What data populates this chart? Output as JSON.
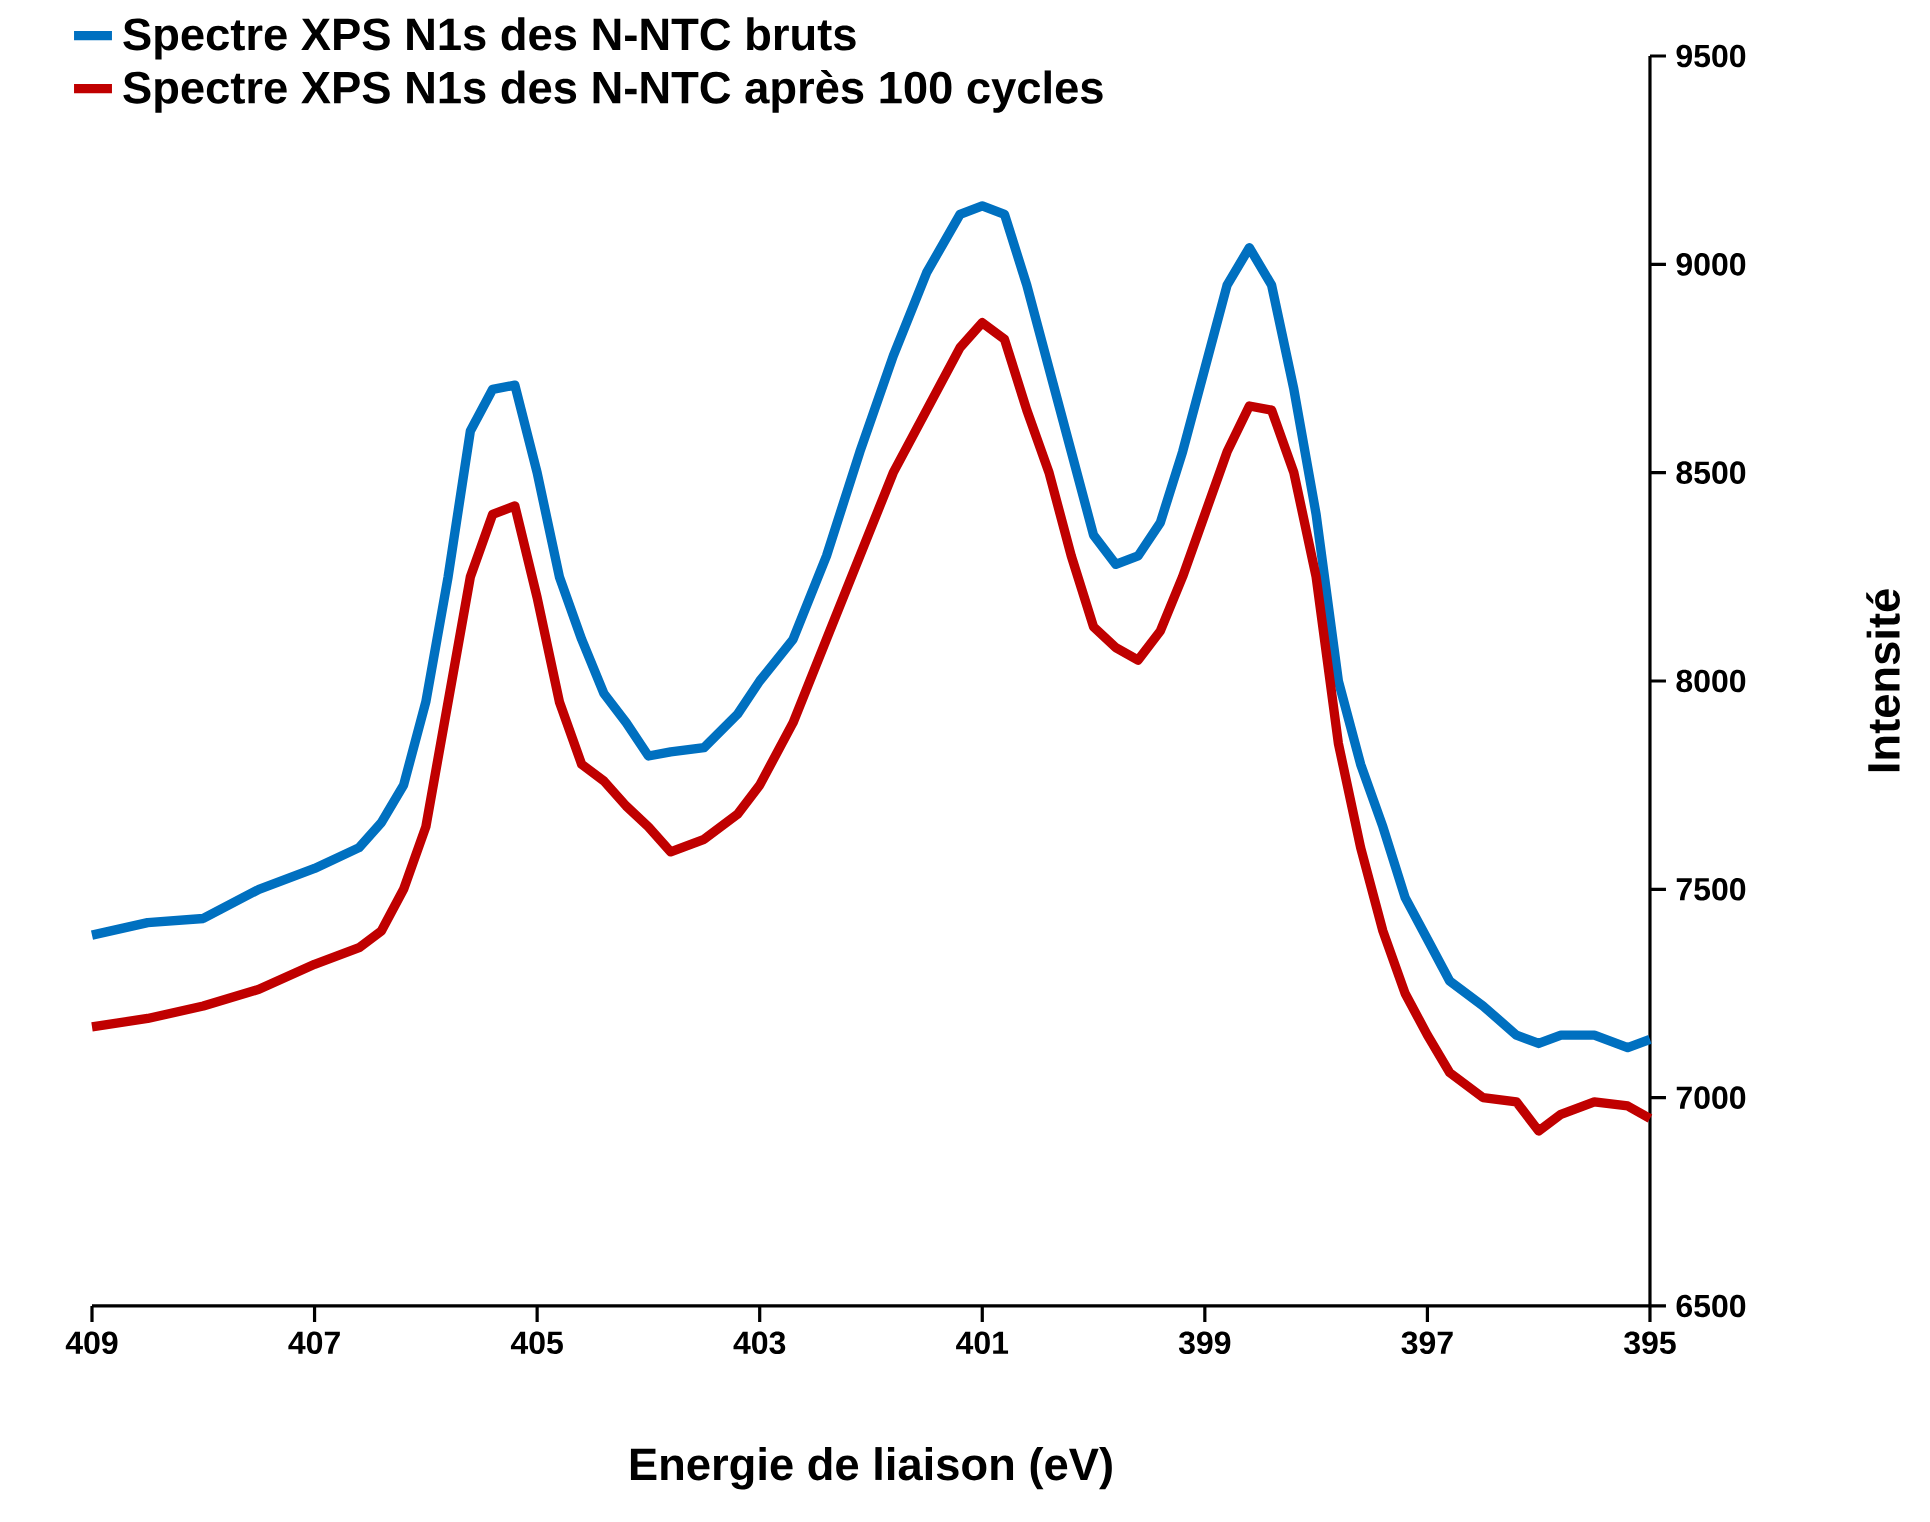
{
  "chart_data": {
    "type": "line",
    "xlabel": "Energie de liaison (eV)",
    "ylabel": "Intensité",
    "xlim": [
      409,
      395
    ],
    "xticks": [
      409,
      407,
      405,
      403,
      401,
      399,
      397,
      395
    ],
    "ylim": [
      6500,
      9500
    ],
    "yticks": [
      6500,
      7000,
      7500,
      8000,
      8500,
      9000,
      9500
    ],
    "grid": false,
    "legend": "top left",
    "marker": "none",
    "line_style": "solid",
    "x": [
      409,
      408.5,
      408,
      407.5,
      407,
      406.6,
      406.4,
      406.2,
      406,
      405.8,
      405.6,
      405.4,
      405.2,
      405,
      404.8,
      404.6,
      404.4,
      404.2,
      404,
      403.8,
      403.5,
      403.2,
      403,
      402.7,
      402.4,
      402.1,
      401.8,
      401.5,
      401.2,
      401,
      400.8,
      400.6,
      400.4,
      400.2,
      400,
      399.8,
      399.6,
      399.4,
      399.2,
      399,
      398.8,
      398.6,
      398.4,
      398.2,
      398,
      397.8,
      397.6,
      397.4,
      397.2,
      397,
      396.8,
      396.5,
      396.2,
      396,
      395.8,
      395.5,
      395.2,
      395
    ],
    "series": [
      {
        "name": "Spectre XPS N1s des N-NTC bruts",
        "color": "#0070c0",
        "values": [
          7390,
          7420,
          7430,
          7500,
          7550,
          7600,
          7660,
          7750,
          7950,
          8250,
          8600,
          8700,
          8710,
          8500,
          8250,
          8100,
          7970,
          7900,
          7820,
          7830,
          7840,
          7920,
          8000,
          8100,
          8300,
          8550,
          8780,
          8980,
          9120,
          9140,
          9120,
          8950,
          8750,
          8550,
          8350,
          8280,
          8300,
          8380,
          8550,
          8750,
          8950,
          9040,
          8950,
          8700,
          8400,
          8000,
          7800,
          7650,
          7480,
          7380,
          7280,
          7220,
          7150,
          7130,
          7150,
          7150,
          7120,
          7140
        ]
      },
      {
        "name": "Spectre XPS N1s des N-NTC après 100 cycles",
        "color": "#c00000",
        "values": [
          7170,
          7190,
          7220,
          7260,
          7320,
          7360,
          7400,
          7500,
          7650,
          7950,
          8250,
          8400,
          8420,
          8200,
          7950,
          7800,
          7760,
          7700,
          7650,
          7590,
          7620,
          7680,
          7750,
          7900,
          8100,
          8300,
          8500,
          8650,
          8800,
          8860,
          8820,
          8650,
          8500,
          8300,
          8130,
          8080,
          8050,
          8120,
          8250,
          8400,
          8550,
          8660,
          8650,
          8500,
          8250,
          7850,
          7600,
          7400,
          7250,
          7150,
          7060,
          7000,
          6990,
          6920,
          6960,
          6990,
          6980,
          6950
        ]
      }
    ]
  }
}
